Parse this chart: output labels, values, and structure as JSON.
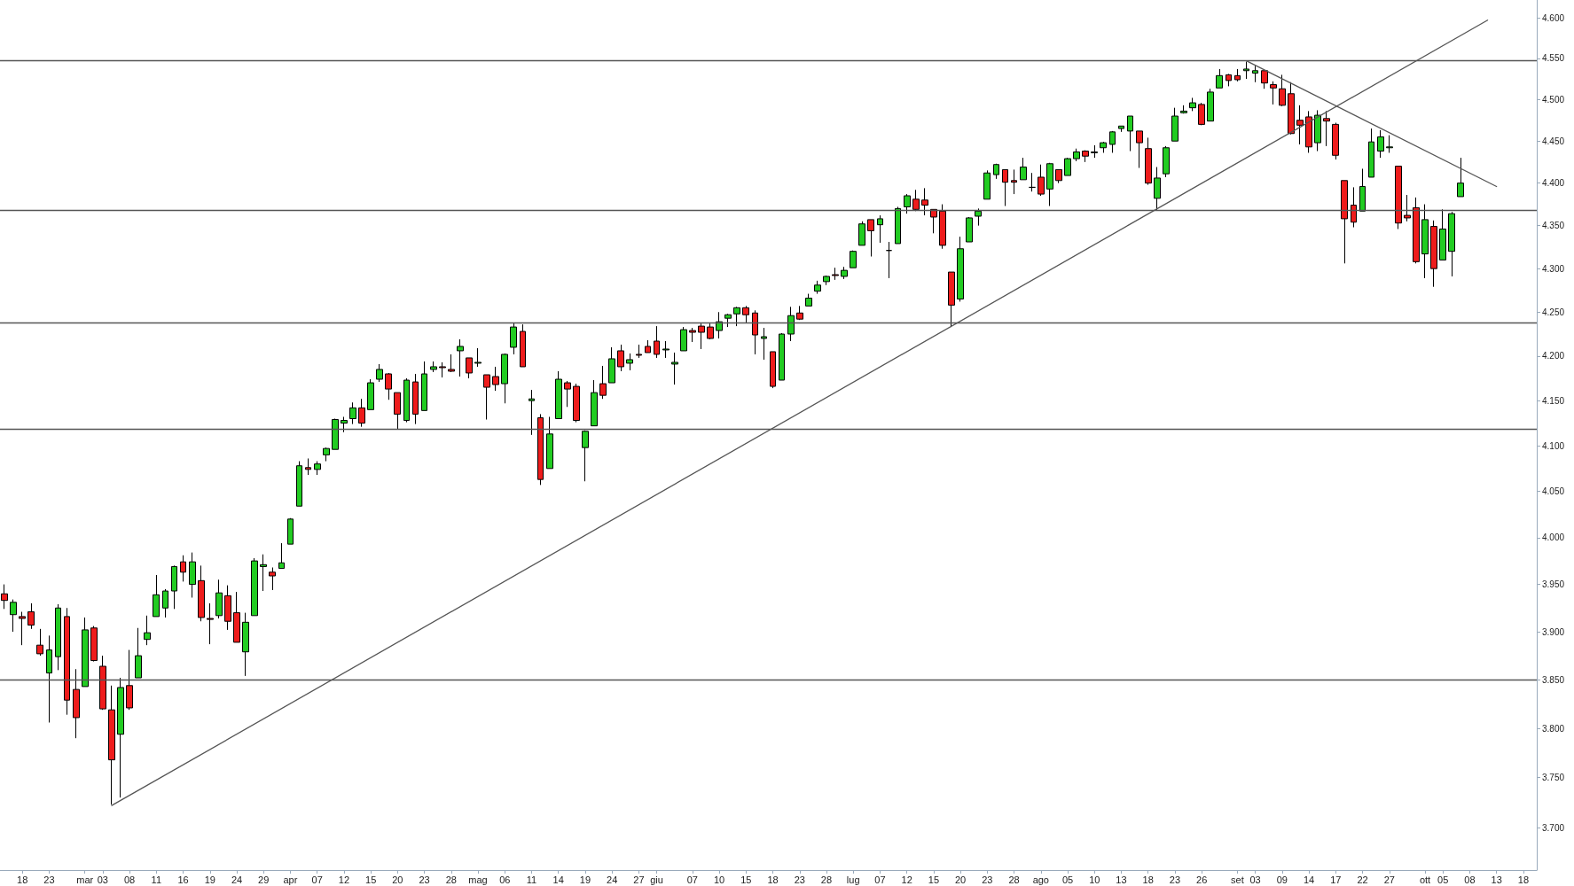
{
  "chart_data": {
    "type": "candlestick",
    "log": true,
    "ylim": [
      3658,
      4622
    ],
    "yticks": [
      {
        "value": 3700,
        "label": "3.700"
      },
      {
        "value": 3750,
        "label": "3.750"
      },
      {
        "value": 3800,
        "label": "3.800"
      },
      {
        "value": 3850,
        "label": "3.850"
      },
      {
        "value": 3900,
        "label": "3.900"
      },
      {
        "value": 3950,
        "label": "3.950"
      },
      {
        "value": 4000,
        "label": "4.000"
      },
      {
        "value": 4050,
        "label": "4.050"
      },
      {
        "value": 4100,
        "label": "4.100"
      },
      {
        "value": 4150,
        "label": "4.150"
      },
      {
        "value": 4200,
        "label": "4.200"
      },
      {
        "value": 4250,
        "label": "4.250"
      },
      {
        "value": 4300,
        "label": "4.300"
      },
      {
        "value": 4350,
        "label": "4.350"
      },
      {
        "value": 4400,
        "label": "4.400"
      },
      {
        "value": 4450,
        "label": "4.450"
      },
      {
        "value": 4500,
        "label": "4.500"
      },
      {
        "value": 4550,
        "label": "4.550"
      },
      {
        "value": 4600,
        "label": "4.600"
      }
    ],
    "categories": [
      null,
      null,
      "18",
      null,
      null,
      "23",
      null,
      null,
      null,
      "mar",
      null,
      "03",
      null,
      null,
      "08",
      null,
      null,
      "11",
      null,
      null,
      "16",
      null,
      null,
      "19",
      null,
      null,
      "24",
      null,
      null,
      "29",
      null,
      null,
      "apr",
      null,
      null,
      "07",
      null,
      null,
      "12",
      null,
      null,
      "15",
      null,
      null,
      "20",
      null,
      null,
      "23",
      null,
      null,
      "28",
      null,
      null,
      "mag",
      null,
      null,
      "06",
      null,
      null,
      "11",
      null,
      null,
      "14",
      null,
      null,
      "19",
      null,
      null,
      "24",
      null,
      null,
      "27",
      null,
      "giu",
      null,
      null,
      null,
      "07",
      null,
      null,
      "10",
      null,
      null,
      "15",
      null,
      null,
      "18",
      null,
      null,
      "23",
      null,
      null,
      "28",
      null,
      null,
      "lug",
      null,
      null,
      "07",
      null,
      null,
      "12",
      null,
      null,
      "15",
      null,
      null,
      "20",
      null,
      null,
      "23",
      null,
      null,
      "28",
      null,
      null,
      "ago",
      null,
      null,
      "05",
      null,
      null,
      "10",
      null,
      null,
      "13",
      null,
      null,
      "18",
      null,
      null,
      "23",
      null,
      null,
      "26",
      null,
      null,
      null,
      "set",
      null,
      "03",
      null,
      null,
      "09",
      null,
      null,
      "14",
      null,
      null,
      "17",
      null,
      null,
      "22",
      null,
      null,
      "27",
      null,
      null,
      null,
      "ott",
      null,
      "05",
      null,
      null,
      "08",
      null,
      null,
      "13",
      null,
      null,
      "18",
      null
    ],
    "ohlc": [
      [
        3940,
        3950,
        3924,
        3933
      ],
      [
        3918,
        3934,
        3900,
        3931
      ],
      [
        3916,
        3921,
        3886,
        3914
      ],
      [
        3921,
        3930,
        3903,
        3907
      ],
      [
        3886,
        3903,
        3875,
        3877
      ],
      [
        3857,
        3896,
        3806,
        3881
      ],
      [
        3874,
        3929,
        3860,
        3925
      ],
      [
        3916,
        3925,
        3814,
        3829
      ],
      [
        3840,
        3861,
        3790,
        3811
      ],
      [
        3843,
        3915,
        3843,
        3902
      ],
      [
        3904,
        3906,
        3869,
        3870
      ],
      [
        3864,
        3875,
        3819,
        3820
      ],
      [
        3819,
        3844,
        3723,
        3768
      ],
      [
        3794,
        3852,
        3730,
        3842
      ],
      [
        3844,
        3881,
        3819,
        3821
      ],
      [
        3852,
        3904,
        3852,
        3875
      ],
      [
        3892,
        3917,
        3886,
        3899
      ],
      [
        3916,
        3960,
        3916,
        3939
      ],
      [
        3925,
        3945,
        3915,
        3943
      ],
      [
        3943,
        3970,
        3924,
        3969
      ],
      [
        3974,
        3981,
        3953,
        3963
      ],
      [
        3950,
        3984,
        3936,
        3974
      ],
      [
        3954,
        3970,
        3911,
        3915
      ],
      [
        3914,
        3930,
        3887,
        3913
      ],
      [
        3917,
        3955,
        3914,
        3941
      ],
      [
        3938,
        3949,
        3902,
        3911
      ],
      [
        3920,
        3942,
        3889,
        3889
      ],
      [
        3879,
        3920,
        3854,
        3910
      ],
      [
        3917,
        3978,
        3917,
        3975
      ],
      [
        3969,
        3982,
        3943,
        3971
      ],
      [
        3963,
        3968,
        3944,
        3959
      ],
      [
        3967,
        3994,
        3967,
        3973
      ],
      [
        3993,
        4021,
        3993,
        4020
      ],
      [
        4034,
        4083,
        4034,
        4078
      ],
      [
        4076,
        4086,
        4068,
        4074
      ],
      [
        4074,
        4083,
        4068,
        4080
      ],
      [
        4090,
        4098,
        4083,
        4097
      ],
      [
        4096,
        4130,
        4096,
        4129
      ],
      [
        4125,
        4132,
        4115,
        4128
      ],
      [
        4130,
        4148,
        4124,
        4142
      ],
      [
        4142,
        4152,
        4121,
        4125
      ],
      [
        4140,
        4174,
        4140,
        4170
      ],
      [
        4174,
        4191,
        4171,
        4185
      ],
      [
        4180,
        4181,
        4151,
        4163
      ],
      [
        4159,
        4159,
        4118,
        4135
      ],
      [
        4128,
        4175,
        4126,
        4173
      ],
      [
        4171,
        4180,
        4124,
        4135
      ],
      [
        4139,
        4194,
        4139,
        4180
      ],
      [
        4185,
        4194,
        4182,
        4188
      ],
      [
        4188,
        4193,
        4176,
        4187
      ],
      [
        4185,
        4202,
        4182,
        4183
      ],
      [
        4206,
        4219,
        4177,
        4211
      ],
      [
        4198,
        4198,
        4175,
        4181
      ],
      [
        4192,
        4209,
        4188,
        4193
      ],
      [
        4179,
        4179,
        4129,
        4165
      ],
      [
        4177,
        4188,
        4161,
        4168
      ],
      [
        4169,
        4203,
        4147,
        4202
      ],
      [
        4210,
        4238,
        4202,
        4233
      ],
      [
        4228,
        4236,
        4188,
        4188
      ],
      [
        4150,
        4162,
        4112,
        4152
      ],
      [
        4131,
        4135,
        4057,
        4063
      ],
      [
        4075,
        4132,
        4075,
        4113
      ],
      [
        4130,
        4183,
        4130,
        4174
      ],
      [
        4170,
        4172,
        4143,
        4163
      ],
      [
        4166,
        4169,
        4126,
        4128
      ],
      [
        4098,
        4117,
        4061,
        4116
      ],
      [
        4122,
        4173,
        4122,
        4159
      ],
      [
        4169,
        4189,
        4152,
        4156
      ],
      [
        4170,
        4210,
        4170,
        4197
      ],
      [
        4206,
        4213,
        4183,
        4188
      ],
      [
        4192,
        4203,
        4184,
        4196
      ],
      [
        4202,
        4213,
        4198,
        4201
      ],
      [
        4211,
        4218,
        4204,
        4204
      ],
      [
        4217,
        4234,
        4198,
        4202
      ],
      [
        4207,
        4217,
        4198,
        4208
      ],
      [
        4191,
        4204,
        4168,
        4193
      ],
      [
        4206,
        4233,
        4206,
        4230
      ],
      [
        4229,
        4232,
        4216,
        4227
      ],
      [
        4234,
        4237,
        4208,
        4227
      ],
      [
        4233,
        4237,
        4219,
        4220
      ],
      [
        4229,
        4250,
        4220,
        4239
      ],
      [
        4243,
        4248,
        4233,
        4247
      ],
      [
        4248,
        4256,
        4234,
        4255
      ],
      [
        4255,
        4257,
        4238,
        4247
      ],
      [
        4249,
        4252,
        4202,
        4224
      ],
      [
        4220,
        4232,
        4196,
        4222
      ],
      [
        4205,
        4205,
        4164,
        4166
      ],
      [
        4173,
        4226,
        4173,
        4225
      ],
      [
        4225,
        4256,
        4217,
        4246
      ],
      [
        4249,
        4257,
        4241,
        4242
      ],
      [
        4257,
        4271,
        4257,
        4266
      ],
      [
        4274,
        4286,
        4271,
        4281
      ],
      [
        4285,
        4292,
        4281,
        4291
      ],
      [
        4293,
        4301,
        4287,
        4292
      ],
      [
        4291,
        4302,
        4288,
        4298
      ],
      [
        4301,
        4321,
        4301,
        4320
      ],
      [
        4327,
        4355,
        4327,
        4352
      ],
      [
        4357,
        4357,
        4314,
        4344
      ],
      [
        4351,
        4362,
        4330,
        4358
      ],
      [
        4321,
        4331,
        4289,
        4321
      ],
      [
        4329,
        4372,
        4329,
        4370
      ],
      [
        4372,
        4387,
        4364,
        4385
      ],
      [
        4381,
        4392,
        4367,
        4369
      ],
      [
        4380,
        4394,
        4362,
        4374
      ],
      [
        4369,
        4369,
        4341,
        4360
      ],
      [
        4367,
        4375,
        4323,
        4327
      ],
      [
        4296,
        4296,
        4233,
        4258
      ],
      [
        4265,
        4337,
        4262,
        4323
      ],
      [
        4331,
        4360,
        4331,
        4359
      ],
      [
        4361,
        4370,
        4350,
        4367
      ],
      [
        4381,
        4415,
        4381,
        4412
      ],
      [
        4410,
        4423,
        4405,
        4422
      ],
      [
        4416,
        4416,
        4373,
        4401
      ],
      [
        4403,
        4416,
        4387,
        4401
      ],
      [
        4404,
        4430,
        4404,
        4419
      ],
      [
        4395,
        4412,
        4390,
        4395
      ],
      [
        4407,
        4422,
        4385,
        4387
      ],
      [
        4393,
        4424,
        4373,
        4423
      ],
      [
        4416,
        4416,
        4400,
        4403
      ],
      [
        4409,
        4430,
        4409,
        4429
      ],
      [
        4429,
        4441,
        4426,
        4437
      ],
      [
        4438,
        4439,
        4425,
        4432
      ],
      [
        4436,
        4445,
        4430,
        4437
      ],
      [
        4442,
        4449,
        4436,
        4448
      ],
      [
        4446,
        4462,
        4436,
        4461
      ],
      [
        4465,
        4468,
        4461,
        4468
      ],
      [
        4462,
        4480,
        4438,
        4480
      ],
      [
        4462,
        4462,
        4418,
        4448
      ],
      [
        4441,
        4454,
        4398,
        4400
      ],
      [
        4382,
        4419,
        4368,
        4406
      ],
      [
        4411,
        4444,
        4407,
        4442
      ],
      [
        4450,
        4490,
        4450,
        4480
      ],
      [
        4484,
        4493,
        4483,
        4486
      ],
      [
        4490,
        4502,
        4486,
        4496
      ],
      [
        4494,
        4496,
        4469,
        4470
      ],
      [
        4474,
        4513,
        4474,
        4509
      ],
      [
        4514,
        4537,
        4514,
        4529
      ],
      [
        4530,
        4531,
        4516,
        4523
      ],
      [
        4529,
        4537,
        4522,
        4524
      ],
      [
        4535,
        4546,
        4525,
        4537
      ],
      [
        4532,
        4541,
        4521,
        4535
      ],
      [
        4535,
        4535,
        4513,
        4520
      ],
      [
        4518,
        4522,
        4494,
        4514
      ],
      [
        4513,
        4530,
        4492,
        4493
      ],
      [
        4507,
        4521,
        4458,
        4459
      ],
      [
        4475,
        4493,
        4446,
        4469
      ],
      [
        4479,
        4486,
        4436,
        4443
      ],
      [
        4448,
        4487,
        4438,
        4481
      ],
      [
        4477,
        4486,
        4444,
        4474
      ],
      [
        4470,
        4472,
        4428,
        4433
      ],
      [
        4403,
        4403,
        4306,
        4358
      ],
      [
        4374,
        4395,
        4348,
        4354
      ],
      [
        4367,
        4417,
        4367,
        4396
      ],
      [
        4407,
        4465,
        4407,
        4449
      ],
      [
        4438,
        4463,
        4430,
        4455
      ],
      [
        4442,
        4457,
        4436,
        4443
      ],
      [
        4420,
        4420,
        4346,
        4353
      ],
      [
        4362,
        4386,
        4355,
        4359
      ],
      [
        4371,
        4383,
        4306,
        4308
      ],
      [
        4317,
        4375,
        4289,
        4357
      ],
      [
        4349,
        4356,
        4279,
        4300
      ],
      [
        4310,
        4369,
        4310,
        4346
      ],
      [
        4320,
        4366,
        4291,
        4364
      ],
      [
        4384,
        4430,
        4384,
        4400
      ],
      null,
      null,
      null,
      null,
      null,
      null,
      null,
      null
    ],
    "colors": [
      "#ee1c1c",
      "#22cc22",
      "#ee1c1c",
      "#ee1c1c",
      "#ee1c1c",
      "#22cc22",
      "#22cc22",
      "#ee1c1c",
      "#ee1c1c",
      "#22cc22",
      "#ee1c1c",
      "#ee1c1c",
      "#ee1c1c",
      "#22cc22",
      "#ee1c1c",
      "#22cc22",
      "#22cc22",
      "#22cc22",
      "#22cc22",
      "#22cc22",
      "#ee1c1c",
      "#22cc22",
      "#ee1c1c",
      "#ee1c1c",
      "#22cc22",
      "#ee1c1c",
      "#ee1c1c",
      "#22cc22",
      "#22cc22",
      "#22cc22",
      "#ee1c1c",
      "#22cc22",
      "#22cc22",
      "#22cc22",
      "#ee1c1c",
      "#22cc22",
      "#22cc22",
      "#22cc22",
      "#22cc22",
      "#22cc22",
      "#ee1c1c",
      "#22cc22",
      "#22cc22",
      "#ee1c1c",
      "#ee1c1c",
      "#22cc22",
      "#ee1c1c",
      "#22cc22",
      "#22cc22",
      "#ee1c1c",
      "#ee1c1c",
      "#22cc22",
      "#ee1c1c",
      "#22cc22",
      "#ee1c1c",
      "#ee1c1c",
      "#22cc22",
      "#22cc22",
      "#ee1c1c",
      "#22cc22",
      "#ee1c1c",
      "#22cc22",
      "#22cc22",
      "#ee1c1c",
      "#ee1c1c",
      "#22cc22",
      "#22cc22",
      "#ee1c1c",
      "#22cc22",
      "#ee1c1c",
      "#22cc22",
      "#ee1c1c",
      "#ee1c1c",
      "#ee1c1c",
      "#22cc22",
      "#22cc22",
      "#22cc22",
      "#ee1c1c",
      "#ee1c1c",
      "#ee1c1c",
      "#22cc22",
      "#22cc22",
      "#22cc22",
      "#ee1c1c",
      "#ee1c1c",
      "#22cc22",
      "#ee1c1c",
      "#22cc22",
      "#22cc22",
      "#ee1c1c",
      "#22cc22",
      "#22cc22",
      "#22cc22",
      "#ee1c1c",
      "#22cc22",
      "#22cc22",
      "#22cc22",
      "#ee1c1c",
      "#22cc22",
      "#000000",
      "#22cc22",
      "#22cc22",
      "#ee1c1c",
      "#ee1c1c",
      "#ee1c1c",
      "#ee1c1c",
      "#ee1c1c",
      "#22cc22",
      "#22cc22",
      "#22cc22",
      "#22cc22",
      "#22cc22",
      "#ee1c1c",
      "#ee1c1c",
      "#22cc22",
      "#000000",
      "#ee1c1c",
      "#22cc22",
      "#ee1c1c",
      "#22cc22",
      "#22cc22",
      "#ee1c1c",
      "#22cc22",
      "#22cc22",
      "#22cc22",
      "#22cc22",
      "#22cc22",
      "#ee1c1c",
      "#ee1c1c",
      "#22cc22",
      "#22cc22",
      "#22cc22",
      "#22cc22",
      "#22cc22",
      "#ee1c1c",
      "#22cc22",
      "#22cc22",
      "#ee1c1c",
      "#ee1c1c",
      "#22cc22",
      "#22cc22",
      "#ee1c1c",
      "#ee1c1c",
      "#ee1c1c",
      "#ee1c1c",
      "#ee1c1c",
      "#ee1c1c",
      "#22cc22",
      "#ee1c1c",
      "#ee1c1c",
      "#ee1c1c",
      "#ee1c1c",
      "#22cc22",
      "#22cc22",
      "#22cc22",
      "#22cc22",
      "#ee1c1c",
      "#ee1c1c",
      "#ee1c1c",
      "#22cc22",
      "#ee1c1c",
      "#22cc22",
      "#22cc22",
      "#22cc22",
      null,
      null,
      null,
      null,
      null,
      null,
      null,
      null
    ],
    "ref_lines": [
      {
        "axis": "y",
        "value": 4547,
        "color": "#555555"
      },
      {
        "axis": "y",
        "value": 4368,
        "color": "#555555"
      },
      {
        "axis": "y",
        "value": 4238,
        "color": "#555555"
      },
      {
        "axis": "y",
        "value": 4118,
        "color": "#555555"
      },
      {
        "axis": "y",
        "value": 3850,
        "color": "#555555"
      }
    ],
    "series": [
      {
        "type": "line",
        "color": "#555555",
        "values": [
          null,
          null,
          null,
          null,
          null,
          null,
          null,
          null,
          null,
          null,
          null,
          null,
          3722,
          null,
          null,
          null,
          null,
          null,
          null,
          null,
          null,
          null,
          null,
          null,
          null,
          null,
          null,
          null,
          null,
          null,
          null,
          null,
          null,
          null,
          null,
          null,
          null,
          null,
          null,
          null,
          null,
          null,
          null,
          null,
          null,
          null,
          null,
          null,
          null,
          null,
          null,
          null,
          null,
          null,
          null,
          null,
          null,
          null,
          null,
          null,
          null,
          null,
          null,
          null,
          null,
          null,
          null,
          null,
          null,
          null,
          null,
          null,
          null,
          null,
          null,
          null,
          null,
          null,
          null,
          null,
          null,
          null,
          null,
          null,
          null,
          null,
          null,
          null,
          null,
          null,
          null,
          null,
          null,
          null,
          null,
          null,
          null,
          null,
          null,
          null,
          null,
          null,
          null,
          null,
          null,
          null,
          null,
          null,
          null,
          null,
          null,
          null,
          null,
          null,
          null,
          null,
          null,
          null,
          null,
          null,
          null,
          null,
          null,
          null,
          null,
          null,
          null,
          null,
          null,
          null,
          null,
          null,
          null,
          null,
          null,
          null,
          null,
          null,
          null,
          null,
          null,
          null,
          null,
          null,
          null,
          null,
          null,
          null,
          null,
          null,
          null,
          null,
          null,
          null,
          null,
          null,
          null,
          null,
          null,
          null,
          null,
          null,
          null,
          null,
          null,
          null,
          4597,
          null,
          null,
          null,
          null,
          null
        ]
      },
      {
        "type": "line",
        "color": "#555555",
        "values": [
          null,
          null,
          null,
          null,
          null,
          null,
          null,
          null,
          null,
          null,
          null,
          null,
          null,
          null,
          null,
          null,
          null,
          null,
          null,
          null,
          null,
          null,
          null,
          null,
          null,
          null,
          null,
          null,
          null,
          null,
          null,
          null,
          null,
          null,
          null,
          null,
          null,
          null,
          null,
          null,
          null,
          null,
          null,
          null,
          null,
          null,
          null,
          null,
          null,
          null,
          null,
          null,
          null,
          null,
          null,
          null,
          null,
          null,
          null,
          null,
          null,
          null,
          null,
          null,
          null,
          null,
          null,
          null,
          null,
          null,
          null,
          null,
          null,
          null,
          null,
          null,
          null,
          null,
          null,
          null,
          null,
          null,
          null,
          null,
          null,
          null,
          null,
          null,
          null,
          null,
          null,
          null,
          null,
          null,
          null,
          null,
          null,
          null,
          null,
          null,
          null,
          null,
          null,
          null,
          null,
          null,
          null,
          null,
          null,
          null,
          null,
          null,
          null,
          null,
          null,
          null,
          null,
          null,
          null,
          null,
          null,
          null,
          null,
          null,
          null,
          null,
          null,
          null,
          null,
          null,
          null,
          null,
          null,
          null,
          null,
          null,
          null,
          null,
          null,
          4547,
          null,
          null,
          null,
          null,
          null,
          null,
          null,
          null,
          null,
          null,
          null,
          null,
          null,
          null,
          null,
          null,
          null,
          null,
          null,
          null,
          null,
          null,
          null,
          null,
          null,
          null,
          null,
          4396,
          null,
          null,
          null,
          null
        ]
      }
    ]
  }
}
